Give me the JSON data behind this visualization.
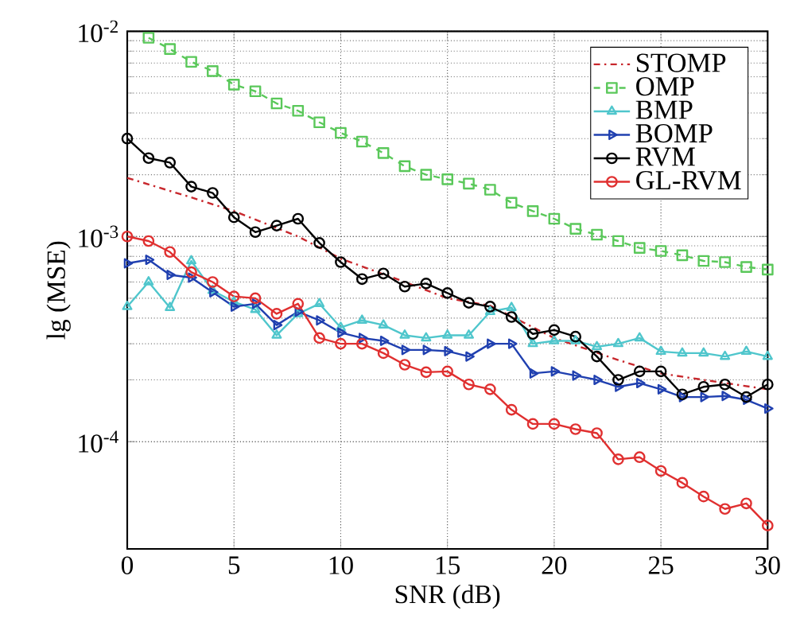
{
  "chart_data": {
    "type": "line",
    "xlabel": "SNR (dB)",
    "ylabel": "lg (MSE)",
    "log": "y",
    "grid": true,
    "legend": "top right",
    "xlim": [
      0,
      30
    ],
    "xticks": [
      0,
      5,
      10,
      15,
      20,
      25,
      30
    ],
    "ylim": [
      3e-05,
      0.01
    ],
    "yticks": [
      {
        "value": 0.0001,
        "label": "10$^{-4}$"
      },
      {
        "value": 0.001,
        "label": "10$^{-3}$"
      },
      {
        "value": 0.01,
        "label": "10$^{-2}$"
      }
    ],
    "x": [
      0,
      1,
      2,
      3,
      4,
      5,
      6,
      7,
      8,
      9,
      10,
      11,
      12,
      13,
      14,
      15,
      16,
      17,
      18,
      19,
      20,
      21,
      22,
      23,
      24,
      25,
      26,
      27,
      28,
      29,
      30
    ],
    "series": [
      {
        "name": "STOMP",
        "color": "#c8282d",
        "marker": "none",
        "line_style": "dashdot",
        "x": [
          0,
          3,
          5,
          8,
          10,
          13,
          15,
          17,
          20,
          23,
          25,
          27,
          30
        ],
        "values": [
          0.00193,
          0.00155,
          0.00133,
          0.001,
          0.00078,
          0.0006,
          0.0005,
          0.00046,
          0.00032,
          0.00025,
          0.000215,
          0.0002,
          0.00018
        ]
      },
      {
        "name": "OMP",
        "color": "#5ac85a",
        "marker": "square",
        "line_style": "dashed",
        "x": [
          1,
          2,
          3,
          4,
          5,
          6,
          7,
          8,
          9,
          10,
          11,
          12,
          13,
          14,
          15,
          16,
          17,
          18,
          19,
          20,
          21,
          22,
          23,
          24,
          25,
          26,
          27,
          28,
          29,
          30
        ],
        "values": [
          0.0093,
          0.0082,
          0.0071,
          0.0064,
          0.0055,
          0.0051,
          0.00445,
          0.0041,
          0.0036,
          0.0032,
          0.0029,
          0.00255,
          0.0022,
          0.002,
          0.0019,
          0.00181,
          0.00169,
          0.00146,
          0.00133,
          0.00122,
          0.00109,
          0.00102,
          0.00095,
          0.00088,
          0.00085,
          0.00081,
          0.00076,
          0.00075,
          0.00071,
          0.00069
        ]
      },
      {
        "name": "BMP",
        "color": "#4fc6cc",
        "marker": "triangle",
        "line_style": "solid",
        "values": [
          0.000455,
          0.0006,
          0.00045,
          0.00076,
          0.000545,
          0.00048,
          0.00044,
          0.00033,
          0.00042,
          0.00047,
          0.00036,
          0.00039,
          0.00037,
          0.00033,
          0.00032,
          0.00033,
          0.00033,
          0.00043,
          0.00045,
          0.0003,
          0.00031,
          0.00031,
          0.00029,
          0.0003,
          0.00032,
          0.000275,
          0.00027,
          0.00027,
          0.00026,
          0.000275,
          0.00026
        ]
      },
      {
        "name": "BOMP",
        "color": "#2040b0",
        "marker": "triangle_right",
        "line_style": "solid",
        "values": [
          0.00074,
          0.00077,
          0.00065,
          0.00063,
          0.000535,
          0.000455,
          0.00047,
          0.00037,
          0.00043,
          0.00039,
          0.00034,
          0.00032,
          0.00031,
          0.00028,
          0.00028,
          0.000276,
          0.00026,
          0.0003,
          0.0003,
          0.000215,
          0.00022,
          0.00021,
          0.0002,
          0.000185,
          0.000193,
          0.00018,
          0.000165,
          0.000165,
          0.000167,
          0.00016,
          0.000145
        ]
      },
      {
        "name": "RVM",
        "color": "#000000",
        "marker": "circle",
        "line_style": "solid",
        "values": [
          0.003,
          0.00241,
          0.00229,
          0.00175,
          0.00163,
          0.00124,
          0.00105,
          0.00113,
          0.00122,
          0.00093,
          0.00075,
          0.00062,
          0.00066,
          0.00057,
          0.00059,
          0.00053,
          0.000475,
          0.000455,
          0.000405,
          0.000335,
          0.00035,
          0.000325,
          0.00026,
          0.0002,
          0.00022,
          0.00022,
          0.00017,
          0.000185,
          0.00019,
          0.000165,
          0.00019
        ]
      },
      {
        "name": "GL-RVM",
        "color": "#e03030",
        "marker": "circle",
        "line_style": "solid",
        "values": [
          0.001,
          0.00095,
          0.00084,
          0.00067,
          0.0006,
          0.00051,
          0.0005,
          0.00042,
          0.00047,
          0.00032,
          0.0003,
          0.0003,
          0.00027,
          0.000237,
          0.000218,
          0.00022,
          0.00019,
          0.00018,
          0.000143,
          0.000122,
          0.000122,
          0.000115,
          0.00011,
          8.2e-05,
          8.4e-05,
          7.2e-05,
          6.3e-05,
          5.4e-05,
          4.7e-05,
          5e-05,
          3.9e-05
        ]
      }
    ]
  }
}
